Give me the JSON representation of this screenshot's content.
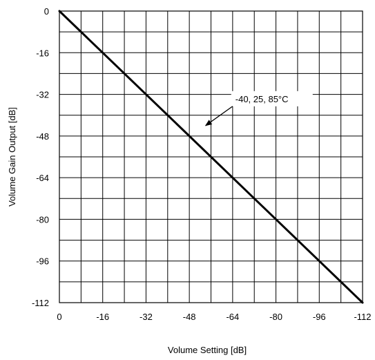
{
  "chart_data": {
    "type": "line",
    "xlabel": "Volume Setting [dB]",
    "ylabel": "Volume Gain Output  [dB]",
    "xlim": [
      0,
      -112
    ],
    "ylim": [
      -112,
      0
    ],
    "x_ticks": [
      0,
      -16,
      -32,
      -48,
      -64,
      -80,
      -96,
      -112
    ],
    "y_ticks": [
      0,
      -16,
      -32,
      -48,
      -64,
      -80,
      -96,
      -112
    ],
    "x_tick_labels": [
      "0",
      "-16",
      "-32",
      "-48",
      "-64",
      "-80",
      "-96",
      "-112"
    ],
    "y_tick_labels": [
      "0",
      "-16",
      "-32",
      "-48",
      "-64",
      "-80",
      "-96",
      "-112"
    ],
    "x_minor_step": 8,
    "y_minor_step": 8,
    "grid": true,
    "series": [
      {
        "name": "-40, 25, 85°C",
        "x": [
          0,
          -112
        ],
        "y": [
          0,
          -112
        ]
      }
    ],
    "annotations": [
      {
        "text": "-40, 25, 85°C",
        "arrow_to": {
          "x": -54,
          "y": -44
        },
        "text_at": {
          "x": -65,
          "y": -35
        }
      }
    ]
  }
}
